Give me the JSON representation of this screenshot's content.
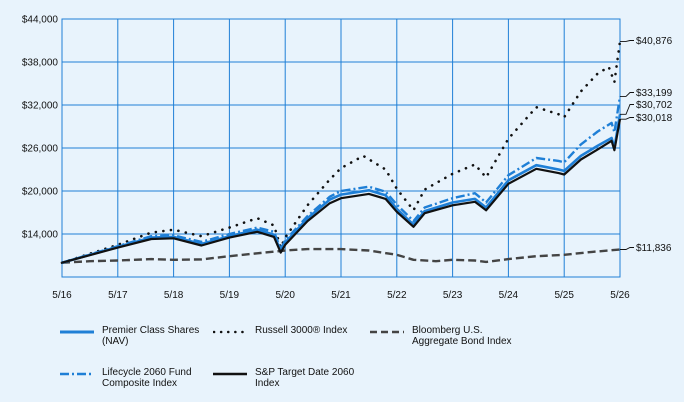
{
  "chart_data": {
    "type": "line",
    "x_ticks": [
      "5/16",
      "5/17",
      "5/18",
      "5/19",
      "5/20",
      "5/21",
      "5/22",
      "5/23",
      "5/24",
      "5/25",
      "5/26"
    ],
    "y_ticks": [
      "$14,000",
      "$20,000",
      "$26,000",
      "$32,000",
      "$38,000",
      "$44,000"
    ],
    "ylim": [
      8000,
      44000
    ],
    "grid": true,
    "legend_position": "bottom",
    "series": [
      {
        "name": "Premier Class Shares\n(NAV)",
        "style": "solid",
        "color": "#1f7fd6",
        "end_label": "$30,702",
        "points": [
          [
            0,
            10000
          ],
          [
            1,
            12200
          ],
          [
            1.6,
            13500
          ],
          [
            2,
            13600
          ],
          [
            2.5,
            12600
          ],
          [
            3,
            13700
          ],
          [
            3.5,
            14600
          ],
          [
            3.8,
            13900
          ],
          [
            3.92,
            11600
          ],
          [
            4,
            12800
          ],
          [
            4.4,
            16200
          ],
          [
            4.8,
            18800
          ],
          [
            5,
            19500
          ],
          [
            5.5,
            20100
          ],
          [
            5.8,
            19400
          ],
          [
            6,
            17500
          ],
          [
            6.3,
            15300
          ],
          [
            6.5,
            17200
          ],
          [
            7,
            18400
          ],
          [
            7.4,
            18900
          ],
          [
            7.6,
            17700
          ],
          [
            8,
            21500
          ],
          [
            8.5,
            23600
          ],
          [
            8.9,
            23000
          ],
          [
            9,
            22800
          ],
          [
            9.3,
            24900
          ],
          [
            9.6,
            26300
          ],
          [
            9.85,
            27400
          ],
          [
            9.9,
            26000
          ],
          [
            10,
            30702
          ]
        ]
      },
      {
        "name": "Russell 3000® Index",
        "style": "dotted",
        "color": "#111111",
        "end_label": "$40,876",
        "points": [
          [
            0,
            10000
          ],
          [
            1,
            12500
          ],
          [
            1.6,
            14200
          ],
          [
            2,
            14600
          ],
          [
            2.5,
            13700
          ],
          [
            3,
            14900
          ],
          [
            3.5,
            16200
          ],
          [
            3.8,
            15200
          ],
          [
            3.92,
            12100
          ],
          [
            4,
            13500
          ],
          [
            4.4,
            18000
          ],
          [
            4.8,
            21600
          ],
          [
            5,
            23200
          ],
          [
            5.4,
            24900
          ],
          [
            5.8,
            23000
          ],
          [
            6,
            20300
          ],
          [
            6.3,
            17300
          ],
          [
            6.5,
            20200
          ],
          [
            7,
            22400
          ],
          [
            7.4,
            23700
          ],
          [
            7.6,
            21900
          ],
          [
            8,
            27300
          ],
          [
            8.5,
            31700
          ],
          [
            8.9,
            30700
          ],
          [
            9,
            30300
          ],
          [
            9.3,
            33900
          ],
          [
            9.6,
            36400
          ],
          [
            9.8,
            37300
          ],
          [
            9.9,
            35200
          ],
          [
            10,
            40876
          ]
        ]
      },
      {
        "name": "Bloomberg U.S.\nAggregate Bond Index",
        "style": "dashed",
        "color": "#444444",
        "end_label": "$11,836",
        "points": [
          [
            0,
            10000
          ],
          [
            0.5,
            10200
          ],
          [
            1,
            10300
          ],
          [
            1.6,
            10500
          ],
          [
            2,
            10400
          ],
          [
            2.5,
            10450
          ],
          [
            3,
            10900
          ],
          [
            3.5,
            11300
          ],
          [
            4,
            11700
          ],
          [
            4.4,
            11900
          ],
          [
            5,
            11900
          ],
          [
            5.5,
            11700
          ],
          [
            6,
            11100
          ],
          [
            6.3,
            10400
          ],
          [
            6.7,
            10200
          ],
          [
            7,
            10400
          ],
          [
            7.4,
            10300
          ],
          [
            7.6,
            10100
          ],
          [
            8,
            10500
          ],
          [
            8.5,
            10900
          ],
          [
            9,
            11100
          ],
          [
            9.5,
            11500
          ],
          [
            10,
            11836
          ]
        ]
      },
      {
        "name": "Lifecycle 2060 Fund\nComposite Index",
        "style": "dashdot",
        "color": "#1f7fd6",
        "end_label": "$33,199",
        "points": [
          [
            0,
            10000
          ],
          [
            1,
            12300
          ],
          [
            1.6,
            13700
          ],
          [
            2,
            13800
          ],
          [
            2.5,
            12900
          ],
          [
            3,
            14000
          ],
          [
            3.5,
            14900
          ],
          [
            3.8,
            14300
          ],
          [
            3.92,
            11900
          ],
          [
            4,
            13100
          ],
          [
            4.4,
            16500
          ],
          [
            4.8,
            19200
          ],
          [
            5,
            20000
          ],
          [
            5.5,
            20600
          ],
          [
            5.8,
            19900
          ],
          [
            6,
            18100
          ],
          [
            6.3,
            15800
          ],
          [
            6.5,
            17700
          ],
          [
            7,
            19000
          ],
          [
            7.4,
            19700
          ],
          [
            7.6,
            18400
          ],
          [
            8,
            22200
          ],
          [
            8.5,
            24600
          ],
          [
            8.9,
            24200
          ],
          [
            9,
            24000
          ],
          [
            9.3,
            26500
          ],
          [
            9.6,
            28300
          ],
          [
            9.85,
            29500
          ],
          [
            9.9,
            28200
          ],
          [
            10,
            33199
          ]
        ]
      },
      {
        "name": "S&P Target Date 2060\nIndex",
        "style": "solid",
        "color": "#111111",
        "end_label": "$30,018",
        "points": [
          [
            0,
            10000
          ],
          [
            1,
            12100
          ],
          [
            1.6,
            13300
          ],
          [
            2,
            13400
          ],
          [
            2.5,
            12400
          ],
          [
            3,
            13500
          ],
          [
            3.5,
            14300
          ],
          [
            3.8,
            13600
          ],
          [
            3.92,
            11400
          ],
          [
            4,
            12500
          ],
          [
            4.4,
            15800
          ],
          [
            4.8,
            18300
          ],
          [
            5,
            19000
          ],
          [
            5.5,
            19600
          ],
          [
            5.8,
            18900
          ],
          [
            6,
            17100
          ],
          [
            6.3,
            15000
          ],
          [
            6.5,
            16900
          ],
          [
            7,
            18000
          ],
          [
            7.4,
            18500
          ],
          [
            7.6,
            17300
          ],
          [
            8,
            21000
          ],
          [
            8.5,
            23100
          ],
          [
            8.9,
            22500
          ],
          [
            9,
            22300
          ],
          [
            9.3,
            24400
          ],
          [
            9.6,
            25800
          ],
          [
            9.85,
            27000
          ],
          [
            9.9,
            25700
          ],
          [
            10,
            30018
          ]
        ]
      }
    ]
  }
}
